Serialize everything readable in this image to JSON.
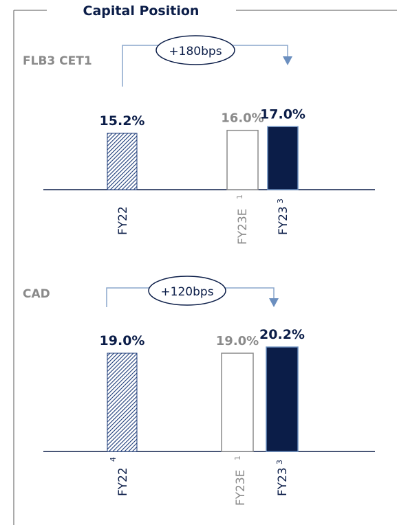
{
  "title": "Capital Position",
  "colors": {
    "navy": "#0b1d48",
    "grey": "#8a8a8a",
    "hatch": "#1b3a78",
    "arrow": "#6b8fbf"
  },
  "chart_data": [
    {
      "type": "bar",
      "label": "FLB3 CET1",
      "categories": [
        {
          "name": "FY22",
          "sup_after": "",
          "sup_before": "",
          "style": "hatched",
          "value": 15.2,
          "value_label": "15.2%"
        },
        {
          "name": "FY23E",
          "sup_after": "1",
          "sup_before": "",
          "style": "outline",
          "value": 16.0,
          "value_label": "16.0%"
        },
        {
          "name": "FY23",
          "sup_after": "3",
          "sup_before": "",
          "style": "solid",
          "value": 17.0,
          "value_label": "17.0%"
        }
      ],
      "change_label": "+180bps",
      "unit": "%"
    },
    {
      "type": "bar",
      "label": "CAD",
      "categories": [
        {
          "name": "FY22",
          "sup_after": "",
          "sup_before": "4",
          "style": "hatched",
          "value": 19.0,
          "value_label": "19.0%"
        },
        {
          "name": "FY23E",
          "sup_after": "1",
          "sup_before": "",
          "style": "outline",
          "value": 19.0,
          "value_label": "19.0%"
        },
        {
          "name": "FY23",
          "sup_after": "3",
          "sup_before": "",
          "style": "solid",
          "value": 20.2,
          "value_label": "20.2%"
        }
      ],
      "change_label": "+120bps",
      "unit": "%"
    }
  ]
}
